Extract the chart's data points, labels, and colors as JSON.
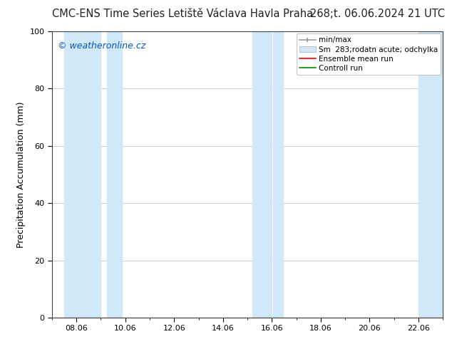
{
  "title_left": "CMC-ENS Time Series Letiště Václava Havla Praha",
  "title_right": "268;t. 06.06.2024 21 UTC",
  "ylabel": "Precipitation Accumulation (mm)",
  "watermark": "© weatheronline.cz",
  "watermark_color": "#0055cc",
  "ylim": [
    0,
    100
  ],
  "yticks": [
    0,
    20,
    40,
    60,
    80,
    100
  ],
  "xtick_labels": [
    "08.06",
    "10.06",
    "12.06",
    "14.06",
    "16.06",
    "18.06",
    "20.06",
    "22.06"
  ],
  "xtick_positions": [
    8,
    10,
    12,
    14,
    16,
    18,
    20,
    22
  ],
  "x_min": 7.0,
  "x_max": 23.0,
  "shade_color": "#d0e8f8",
  "shade_bands": [
    [
      7.5,
      9.0
    ],
    [
      9.25,
      9.85
    ],
    [
      15.2,
      16.0
    ],
    [
      16.05,
      16.45
    ],
    [
      22.0,
      23.0
    ]
  ],
  "legend_labels": [
    "min/max",
    "Sm  283;rodatn acute; odchylka",
    "Ensemble mean run",
    "Controll run"
  ],
  "legend_colors": [
    "#999999",
    "#c8ddf0",
    "#ff0000",
    "#008800"
  ],
  "ensemble_color": "#ff0000",
  "control_color": "#008800",
  "title_fontsize": 10.5,
  "ylabel_fontsize": 9,
  "tick_fontsize": 8,
  "watermark_fontsize": 9,
  "legend_fontsize": 7.5,
  "grid_color": "#bbbbbb",
  "background_color": "#ffffff"
}
